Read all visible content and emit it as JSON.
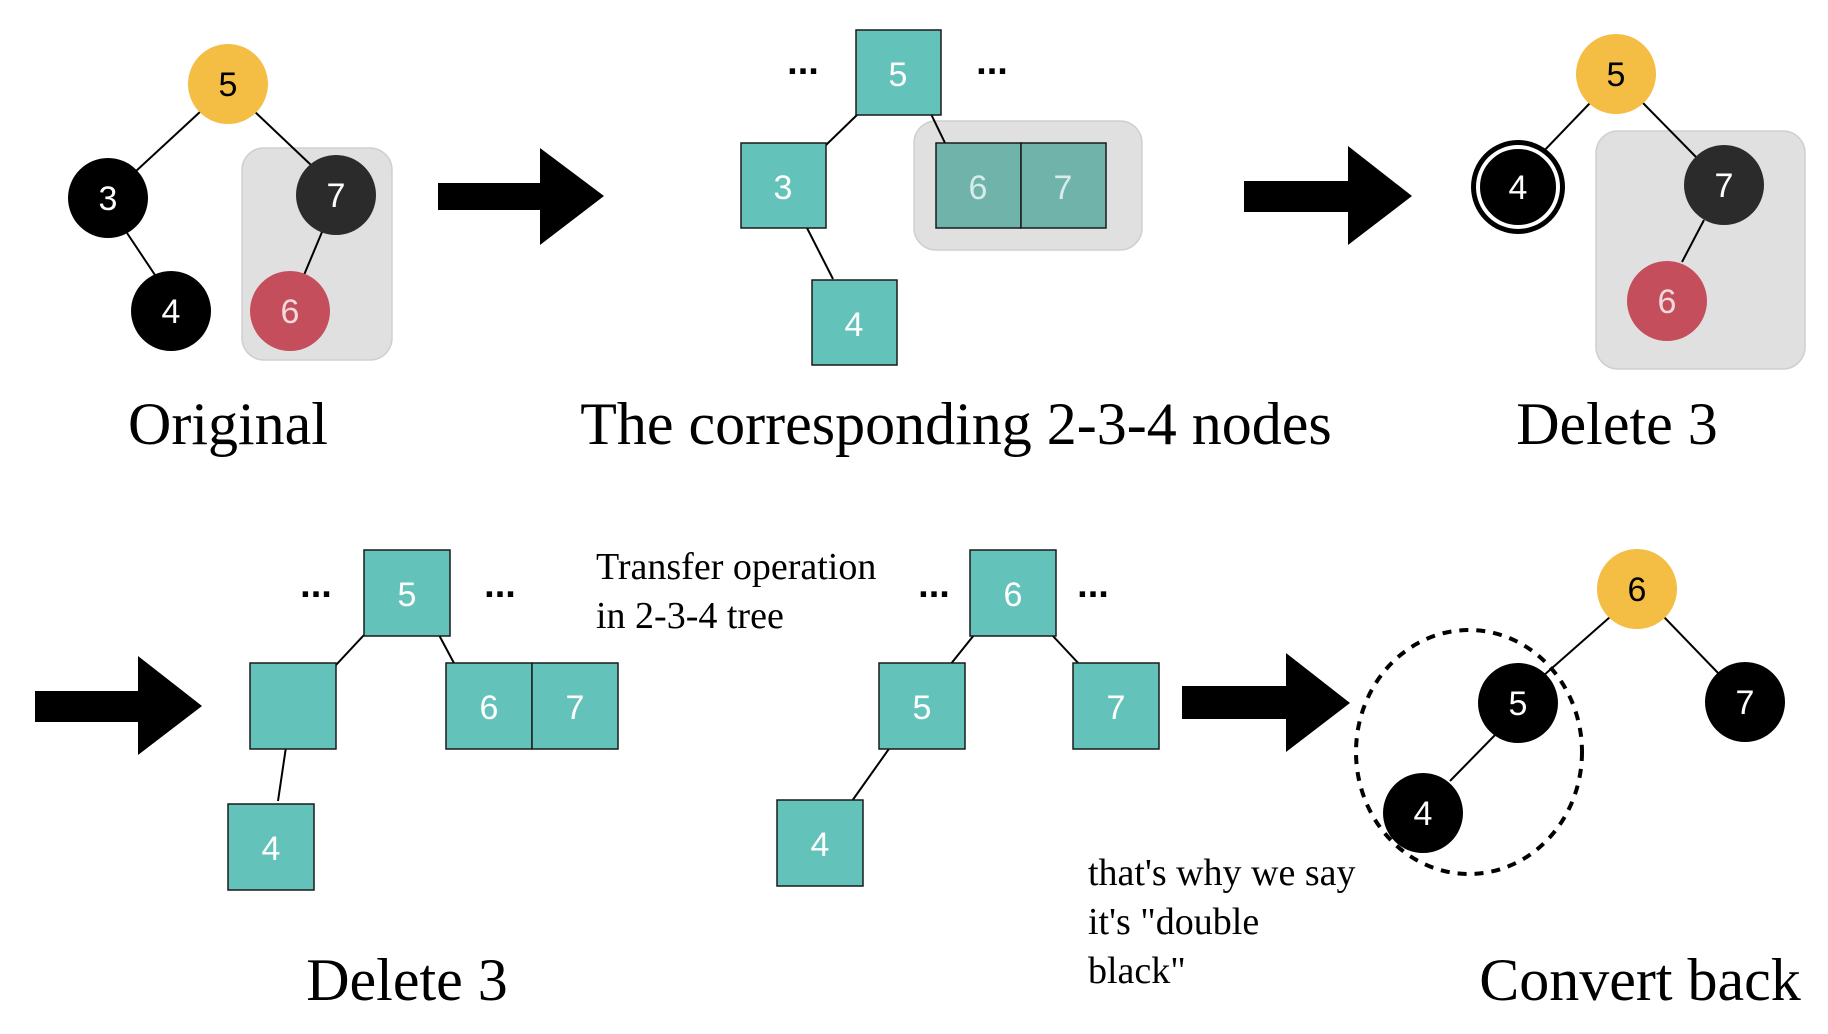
{
  "colors": {
    "root_yellow": "#f4bd43",
    "black_node": "#000000",
    "dark_node": "#2b2b2b",
    "red_node": "#c44e5b",
    "teal_node": "#63c2b9",
    "teal_dark_node": "#6fb3ab",
    "group_box": "#e0e0e0"
  },
  "panels": {
    "original": {
      "caption": "Original",
      "nodes": {
        "root": "5",
        "left": "3",
        "left_child": "4",
        "right": "7",
        "right_child": "6"
      }
    },
    "nodes234": {
      "caption": "The corresponding 2-3-4 nodes",
      "ellipsis_left": "...",
      "ellipsis_right": "...",
      "nodes": {
        "top": "5",
        "left": "3",
        "left_child": "4",
        "right_a": "6",
        "right_b": "7"
      }
    },
    "delete3_rb": {
      "caption": "Delete 3",
      "nodes": {
        "root": "5",
        "left": "4",
        "right": "7",
        "right_child": "6"
      }
    },
    "delete3_234": {
      "caption": "Delete 3",
      "ellipsis_left": "...",
      "ellipsis_right": "...",
      "nodes": {
        "top": "5",
        "left": "",
        "left_child": "4",
        "right_a": "6",
        "right_b": "7"
      }
    },
    "transfer": {
      "note_line1": "Transfer operation",
      "note_line2": "in 2-3-4 tree",
      "ellipsis_left": "...",
      "ellipsis_right": "...",
      "nodes": {
        "top": "6",
        "left": "5",
        "left_child": "4",
        "right": "7"
      }
    },
    "convert_back": {
      "caption": "Convert back",
      "note_line1": "that's why we say",
      "note_line2": "it's \"double",
      "note_line3": "black\"",
      "nodes": {
        "root": "6",
        "left": "5",
        "left_child": "4",
        "right": "7"
      }
    }
  }
}
